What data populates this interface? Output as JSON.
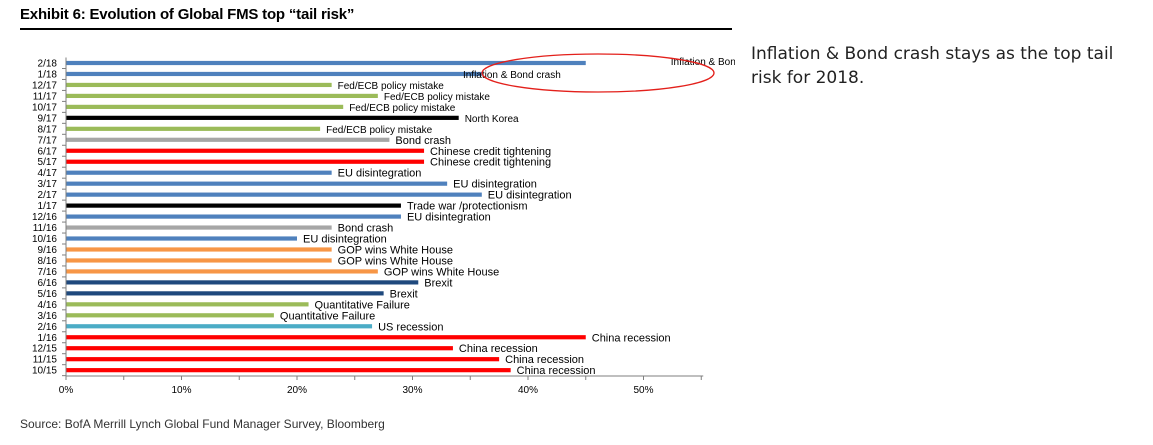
{
  "header": {
    "title": "Exhibit 6: Evolution of Global FMS top “tail risk”"
  },
  "note": {
    "text": "Inflation & Bond crash stays as the top tail risk for 2018."
  },
  "footer": {
    "source": "Source: BofA Merrill Lynch Global Fund Manager Survey, Bloomberg"
  },
  "colors": {
    "inflation": "#4f81bd",
    "fed": "#9bbb59",
    "north_korea": "#000000",
    "bond": "#a6a6a6",
    "china_credit": "#ff0000",
    "eu": "#4f81bd",
    "trade": "#000000",
    "gop": "#f79646",
    "brexit": "#1f497d",
    "quant": "#9bbb59",
    "us_recession": "#4bacc6",
    "china_recession": "#ff0000",
    "highlight": "#e3201b"
  },
  "chart_data": {
    "type": "bar",
    "orientation": "horizontal",
    "title": "Exhibit 6: Evolution of Global FMS top “tail risk”",
    "xlabel": "",
    "ylabel": "",
    "xlim": [
      0,
      55
    ],
    "xticks": [
      "0%",
      "10%",
      "20%",
      "30%",
      "40%",
      "50%"
    ],
    "grid": false,
    "highlight_annotation": "Inflation & Bond crash",
    "rows": [
      {
        "date": "2/18",
        "label": "Inflation & Bond crash",
        "value": 45,
        "color_key": "inflation"
      },
      {
        "date": "1/18",
        "label": "Inflation & Bond crash",
        "value": 36,
        "color_key": "inflation"
      },
      {
        "date": "12/17",
        "label": "Fed/ECB policy mistake",
        "value": 23,
        "color_key": "fed"
      },
      {
        "date": "11/17",
        "label": "Fed/ECB policy mistake",
        "value": 27,
        "color_key": "fed"
      },
      {
        "date": "10/17",
        "label": "Fed/ECB policy mistake",
        "value": 24,
        "color_key": "fed"
      },
      {
        "date": "9/17",
        "label": "North Korea",
        "value": 34,
        "color_key": "north_korea"
      },
      {
        "date": "8/17",
        "label": "Fed/ECB policy mistake",
        "value": 22,
        "color_key": "fed"
      },
      {
        "date": "7/17",
        "label": "Bond crash",
        "value": 28,
        "color_key": "bond"
      },
      {
        "date": "6/17",
        "label": "Chinese credit tightening",
        "value": 31,
        "color_key": "china_credit"
      },
      {
        "date": "5/17",
        "label": "Chinese credit tightening",
        "value": 31,
        "color_key": "china_credit"
      },
      {
        "date": "4/17",
        "label": "EU disintegration",
        "value": 23,
        "color_key": "eu"
      },
      {
        "date": "3/17",
        "label": "EU disintegration",
        "value": 33,
        "color_key": "eu"
      },
      {
        "date": "2/17",
        "label": "EU disintegration",
        "value": 36,
        "color_key": "eu"
      },
      {
        "date": "1/17",
        "label": "Trade war /protectionism",
        "value": 29,
        "color_key": "trade"
      },
      {
        "date": "12/16",
        "label": "EU disintegration",
        "value": 29,
        "color_key": "eu"
      },
      {
        "date": "11/16",
        "label": "Bond crash",
        "value": 23,
        "color_key": "bond"
      },
      {
        "date": "10/16",
        "label": "EU disintegration",
        "value": 20,
        "color_key": "eu"
      },
      {
        "date": "9/16",
        "label": "GOP wins White House",
        "value": 23,
        "color_key": "gop"
      },
      {
        "date": "8/16",
        "label": "GOP wins White House",
        "value": 23,
        "color_key": "gop"
      },
      {
        "date": "7/16",
        "label": "GOP wins White House",
        "value": 27,
        "color_key": "gop"
      },
      {
        "date": "6/16",
        "label": "Brexit",
        "value": 30.5,
        "color_key": "brexit"
      },
      {
        "date": "5/16",
        "label": "Brexit",
        "value": 27.5,
        "color_key": "brexit"
      },
      {
        "date": "4/16",
        "label": "Quantitative Failure",
        "value": 21,
        "color_key": "quant"
      },
      {
        "date": "3/16",
        "label": "Quantitative Failure",
        "value": 18,
        "color_key": "quant"
      },
      {
        "date": "2/16",
        "label": "US recession",
        "value": 26.5,
        "color_key": "us_recession"
      },
      {
        "date": "1/16",
        "label": "China recession",
        "value": 45,
        "color_key": "china_recession"
      },
      {
        "date": "12/15",
        "label": "China recession",
        "value": 33.5,
        "color_key": "china_recession"
      },
      {
        "date": "11/15",
        "label": "China recession",
        "value": 37.5,
        "color_key": "china_recession"
      },
      {
        "date": "10/15",
        "label": "China recession",
        "value": 38.5,
        "color_key": "china_recession"
      }
    ]
  }
}
